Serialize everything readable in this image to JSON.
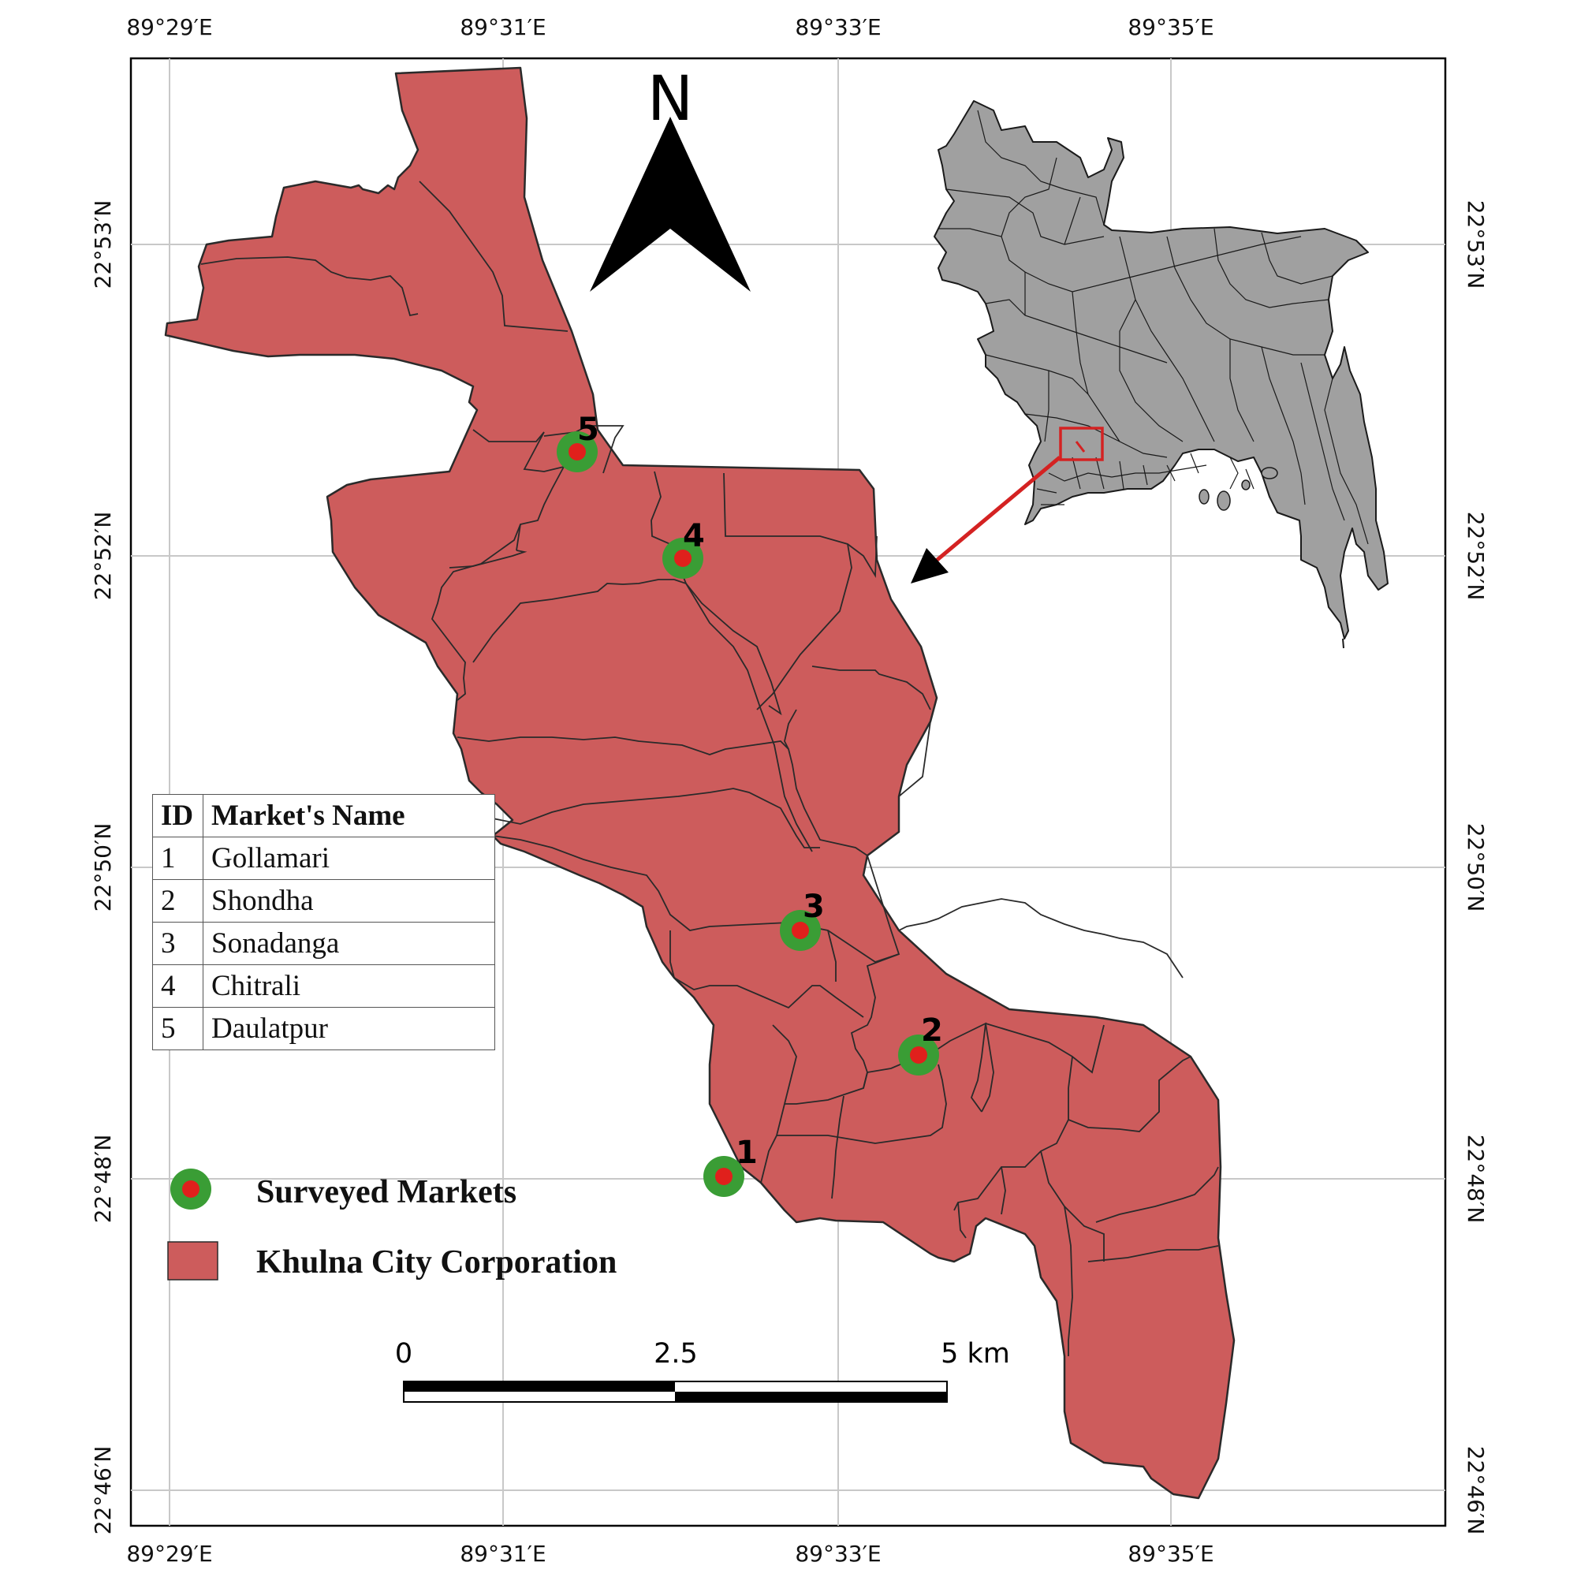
{
  "map": {
    "lon_labels": [
      "89°29′E",
      "89°31′E",
      "89°33′E",
      "89°35′E"
    ],
    "lat_labels": [
      "22°53′N",
      "22°52′N",
      "22°50′N",
      "22°48′N",
      "22°46′N"
    ],
    "north_label": "N",
    "scale_bar": {
      "labels": [
        "0",
        "2.5",
        "5 km"
      ]
    },
    "colors": {
      "city_fill": "#cd5c5c",
      "inset_fill": "#a0a0a0",
      "marker_ring": "#3a9d35",
      "marker_dot": "#e0201c",
      "arrow": "#d42222"
    }
  },
  "markets": [
    {
      "id": "1",
      "name": "Gollamari"
    },
    {
      "id": "2",
      "name": "Shondha"
    },
    {
      "id": "3",
      "name": "Sonadanga"
    },
    {
      "id": "4",
      "name": "Chitrali"
    },
    {
      "id": "5",
      "name": "Daulatpur"
    }
  ],
  "table": {
    "col_id": "ID",
    "col_name": "Market's Name"
  },
  "legend": {
    "markets_label": "Surveyed Markets",
    "area_label": "Khulna City Corporation"
  }
}
